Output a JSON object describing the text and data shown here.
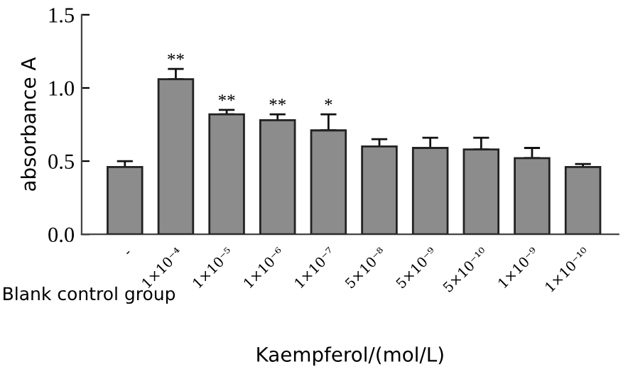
{
  "chart_data": {
    "type": "bar",
    "ylabel": "absorbance A",
    "xlabel": "Kaempferol/(mol/L)",
    "categories": [
      "-",
      "1×10⁻⁴",
      "1×10⁻⁵",
      "1×10⁻⁶",
      "1×10⁻⁷",
      "5×10⁻⁸",
      "5×10⁻⁹",
      "5×10⁻¹⁰",
      "1×10⁻⁹",
      "1×10⁻¹⁰"
    ],
    "values": [
      0.46,
      1.06,
      0.82,
      0.78,
      0.71,
      0.6,
      0.59,
      0.58,
      0.52,
      0.46
    ],
    "errors": [
      [
        0.46,
        0.5
      ],
      [
        1.06,
        1.13
      ],
      [
        0.82,
        0.85
      ],
      [
        0.78,
        0.82
      ],
      [
        0.71,
        0.82
      ],
      [
        0.6,
        0.65
      ],
      [
        0.59,
        0.66
      ],
      [
        0.58,
        0.66
      ],
      [
        0.52,
        0.59
      ],
      [
        0.46,
        0.48
      ]
    ],
    "color": "#8c8c8c",
    "ylim": [
      0,
      1.5
    ],
    "yticks": [
      {
        "value": 0,
        "label": "0.0"
      },
      {
        "value": 0.5,
        "label": "0.5"
      },
      {
        "value": 1.0,
        "label": "1.0"
      },
      {
        "value": 1.5,
        "label": "1.5"
      }
    ],
    "grid": false,
    "annotations": [
      "Blank control group",
      {
        "text": "**",
        "x": "1×10⁻⁴",
        "y": 1.13
      },
      {
        "text": "**",
        "x": "1×10⁻⁵",
        "y": 0.85
      },
      {
        "text": "**",
        "x": "1×10⁻⁶",
        "y": 0.82
      },
      {
        "text": "*",
        "x": "1×10⁻⁷",
        "y": 0.82
      }
    ]
  }
}
